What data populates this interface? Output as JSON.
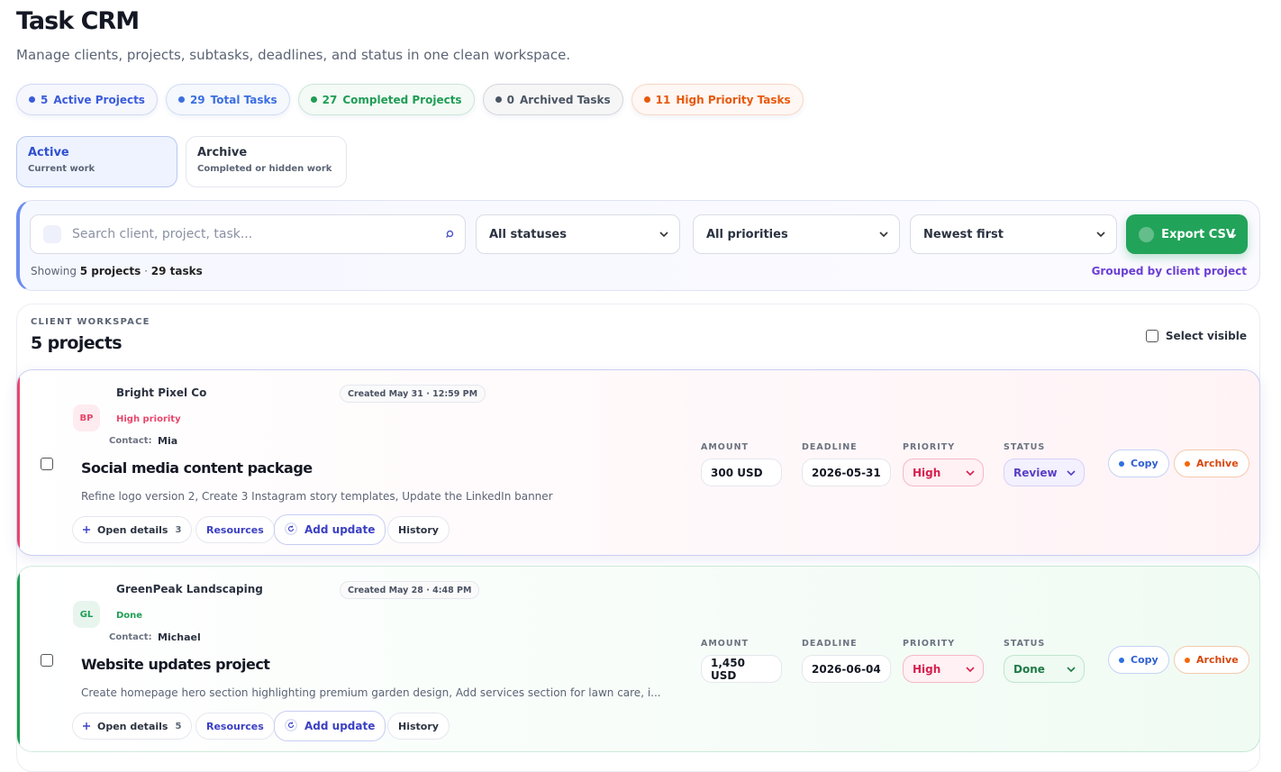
{
  "header": {
    "title": "Task CRM",
    "subtitle": "Manage clients, projects, subtasks, deadlines, and status in one clean workspace."
  },
  "stats": [
    {
      "value": 5,
      "label": "Active Projects",
      "color": "#3b5bdb"
    },
    {
      "value": 29,
      "label": "Total Tasks",
      "color": "#3b6fe0"
    },
    {
      "value": 27,
      "label": "Completed Projects",
      "color": "#1f9d55"
    },
    {
      "value": 0,
      "label": "Archived Tasks",
      "color": "#4b5563"
    },
    {
      "value": 11,
      "label": "High Priority Tasks",
      "color": "#e8590c"
    }
  ],
  "tabs": [
    {
      "title": "Active",
      "subtitle": "Current work",
      "selected": true
    },
    {
      "title": "Archive",
      "subtitle": "Completed or hidden work",
      "selected": false
    }
  ],
  "filters": {
    "search_placeholder": "Search client, project, task...",
    "selects": [
      "All statuses",
      "All priorities",
      "Newest first"
    ],
    "export": "Export CSV",
    "summary": {
      "prefix": "Showing",
      "projects": "5 projects",
      "separator": "·",
      "tasks": "29 tasks"
    },
    "grouping": "Grouped by client project"
  },
  "workspace": {
    "eyebrow": "CLIENT WORKSPACE",
    "heading": "5 projects",
    "select_visible": "Select visible",
    "field_labels": [
      "AMOUNT",
      "DEADLINE",
      "PRIORITY",
      "STATUS"
    ]
  },
  "projects": [
    {
      "initials": "BP",
      "client": "Bright Pixel Co",
      "created": "Created May 31 · 12:59 PM",
      "tag": "High priority",
      "accent": "#e8466b",
      "tint": "#fff3f6",
      "contact_label": "Contact:",
      "contact": "Mia",
      "title": "Social media content package",
      "description": "Refine logo version 2, Create 3 Instagram story templates, Update the LinkedIn banner",
      "amount": "300 USD",
      "deadline": "2026-05-31",
      "priority": "High",
      "status": "Review",
      "actions": {
        "open_details": "Open details",
        "subtask_count": 3,
        "resources": "Resources",
        "add_update": "Add update",
        "history": "History",
        "copy": "Copy",
        "archive": "Archive"
      }
    },
    {
      "initials": "GL",
      "client": "GreenPeak Landscaping",
      "created": "Created May 28 · 4:48 PM",
      "tag": "Done",
      "accent": "#1f9d55",
      "tint": "#f0fbf3",
      "contact_label": "Contact:",
      "contact": "Michael",
      "title": "Website updates project",
      "description": "Create homepage hero section highlighting premium garden design, Add services section for lawn care, i...",
      "amount": "1,450 USD",
      "deadline": "2026-06-04",
      "priority": "High",
      "status": "Done",
      "actions": {
        "open_details": "Open details",
        "subtask_count": 5,
        "resources": "Resources",
        "add_update": "Add update",
        "history": "History",
        "copy": "Copy",
        "archive": "Archive"
      }
    }
  ]
}
